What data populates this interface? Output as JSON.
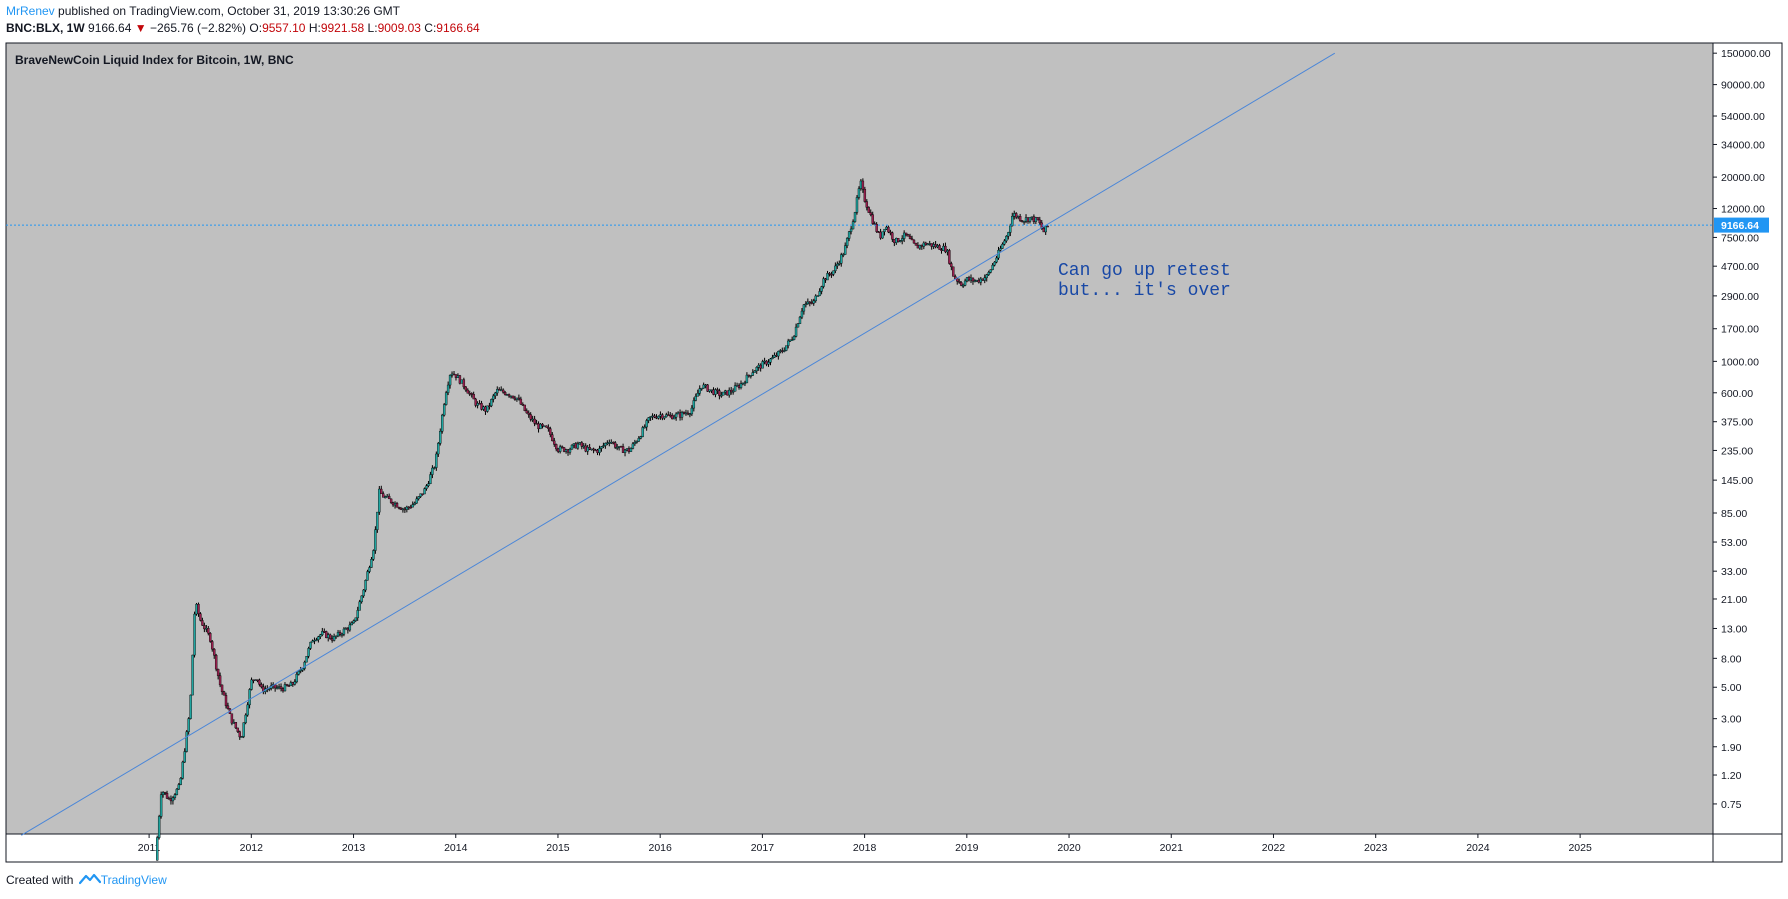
{
  "header": {
    "author": "MrRenev",
    "published_text": " published on TradingView.com, October 31, 2019 13:30:26 GMT",
    "symbol": "BNC:BLX, 1W",
    "last": "9166.64",
    "change_arrow": "▼",
    "change": "−265.76 (−2.82%)",
    "open_label": "O:",
    "open": "9557.10",
    "high_label": "H:",
    "high": "9921.58",
    "low_label": "L:",
    "low": "9009.03",
    "close_label": "C:",
    "close": "9166.64"
  },
  "footer": {
    "created_with": "Created with",
    "brand": "TradingView"
  },
  "colors": {
    "background": "#c0c0c0",
    "candle_up": "#1fa5a0",
    "candle_down": "#9a1f4f",
    "trend_line": "#4a86d8",
    "price_line": "#2196f3",
    "annotation": "#1848a6"
  },
  "chart_data": {
    "type": "candlestick",
    "title": "BraveNewCoin Liquid Index for Bitcoin, 1W, BNC",
    "y_scale": "log",
    "y_ticks": [
      0.75,
      1.2,
      1.9,
      3.0,
      5.0,
      8.0,
      13.0,
      21.0,
      33.0,
      53.0,
      85.0,
      145.0,
      235.0,
      375.0,
      600.0,
      1000.0,
      1700.0,
      2900.0,
      4700.0,
      7500.0,
      12000.0,
      20000.0,
      34000.0,
      54000.0,
      90000.0,
      150000.0
    ],
    "y_tick_labels": [
      "0.75",
      "1.20",
      "1.90",
      "3.00",
      "5.00",
      "8.00",
      "13.00",
      "21.00",
      "33.00",
      "53.00",
      "85.00",
      "145.00",
      "235.00",
      "375.00",
      "600.00",
      "1000.00",
      "1700.00",
      "2900.00",
      "4700.00",
      "7500.00",
      "12000.00",
      "20000.00",
      "34000.00",
      "54000.00",
      "90000.00",
      "150000.00"
    ],
    "x_ticks": [
      "2011",
      "2012",
      "2013",
      "2014",
      "2015",
      "2016",
      "2017",
      "2018",
      "2019",
      "2020",
      "2021",
      "2022",
      "2023",
      "2024",
      "2025"
    ],
    "x_range": [
      2009.6,
      2026.3
    ],
    "y_range": [
      0.46,
      177000
    ],
    "last_price": 9166.64,
    "last_price_label": "9166.64",
    "price_path": [
      [
        2011.06,
        0.3
      ],
      [
        2011.12,
        0.95
      ],
      [
        2011.2,
        0.8
      ],
      [
        2011.3,
        1.0
      ],
      [
        2011.4,
        3.5
      ],
      [
        2011.45,
        20
      ],
      [
        2011.5,
        15
      ],
      [
        2011.6,
        11
      ],
      [
        2011.7,
        5
      ],
      [
        2011.8,
        3
      ],
      [
        2011.9,
        2.2
      ],
      [
        2012.0,
        5.5
      ],
      [
        2012.05,
        6
      ],
      [
        2012.1,
        4.8
      ],
      [
        2012.2,
        5
      ],
      [
        2012.3,
        4.9
      ],
      [
        2012.4,
        5.2
      ],
      [
        2012.5,
        7
      ],
      [
        2012.6,
        11
      ],
      [
        2012.7,
        12
      ],
      [
        2012.8,
        11
      ],
      [
        2012.9,
        12.5
      ],
      [
        2013.0,
        14
      ],
      [
        2013.1,
        25
      ],
      [
        2013.2,
        50
      ],
      [
        2013.25,
        120
      ],
      [
        2013.3,
        110
      ],
      [
        2013.4,
        100
      ],
      [
        2013.5,
        90
      ],
      [
        2013.6,
        100
      ],
      [
        2013.7,
        125
      ],
      [
        2013.8,
        190
      ],
      [
        2013.9,
        600
      ],
      [
        2013.95,
        850
      ],
      [
        2014.0,
        800
      ],
      [
        2014.1,
        650
      ],
      [
        2014.2,
        500
      ],
      [
        2014.3,
        450
      ],
      [
        2014.4,
        620
      ],
      [
        2014.5,
        600
      ],
      [
        2014.6,
        550
      ],
      [
        2014.7,
        420
      ],
      [
        2014.8,
        350
      ],
      [
        2014.9,
        330
      ],
      [
        2015.0,
        240
      ],
      [
        2015.1,
        240
      ],
      [
        2015.2,
        260
      ],
      [
        2015.3,
        235
      ],
      [
        2015.4,
        235
      ],
      [
        2015.5,
        280
      ],
      [
        2015.6,
        240
      ],
      [
        2015.7,
        235
      ],
      [
        2015.8,
        300
      ],
      [
        2015.9,
        400
      ],
      [
        2016.0,
        420
      ],
      [
        2016.1,
        410
      ],
      [
        2016.2,
        420
      ],
      [
        2016.3,
        450
      ],
      [
        2016.4,
        680
      ],
      [
        2016.5,
        620
      ],
      [
        2016.6,
        580
      ],
      [
        2016.7,
        620
      ],
      [
        2016.8,
        700
      ],
      [
        2016.9,
        850
      ],
      [
        2017.0,
        950
      ],
      [
        2017.1,
        1050
      ],
      [
        2017.2,
        1200
      ],
      [
        2017.3,
        1500
      ],
      [
        2017.4,
        2500
      ],
      [
        2017.5,
        2600
      ],
      [
        2017.6,
        3800
      ],
      [
        2017.7,
        4400
      ],
      [
        2017.8,
        6000
      ],
      [
        2017.9,
        11000
      ],
      [
        2017.96,
        18500
      ],
      [
        2018.0,
        14000
      ],
      [
        2018.1,
        9000
      ],
      [
        2018.15,
        7500
      ],
      [
        2018.2,
        9200
      ],
      [
        2018.3,
        7000
      ],
      [
        2018.4,
        7800
      ],
      [
        2018.5,
        6400
      ],
      [
        2018.6,
        6800
      ],
      [
        2018.7,
        6500
      ],
      [
        2018.8,
        6200
      ],
      [
        2018.87,
        4000
      ],
      [
        2018.95,
        3500
      ],
      [
        2019.0,
        3800
      ],
      [
        2019.1,
        3700
      ],
      [
        2019.2,
        4000
      ],
      [
        2019.3,
        5600
      ],
      [
        2019.4,
        8000
      ],
      [
        2019.45,
        11000
      ],
      [
        2019.5,
        10500
      ],
      [
        2019.55,
        10000
      ],
      [
        2019.62,
        10300
      ],
      [
        2019.7,
        9800
      ],
      [
        2019.75,
        8200
      ],
      [
        2019.8,
        9166.64
      ]
    ],
    "trend_line": [
      [
        2009.75,
        0.45
      ],
      [
        2022.6,
        150000
      ]
    ],
    "annotation": [
      "Can go up retest",
      "but... it's over"
    ]
  }
}
